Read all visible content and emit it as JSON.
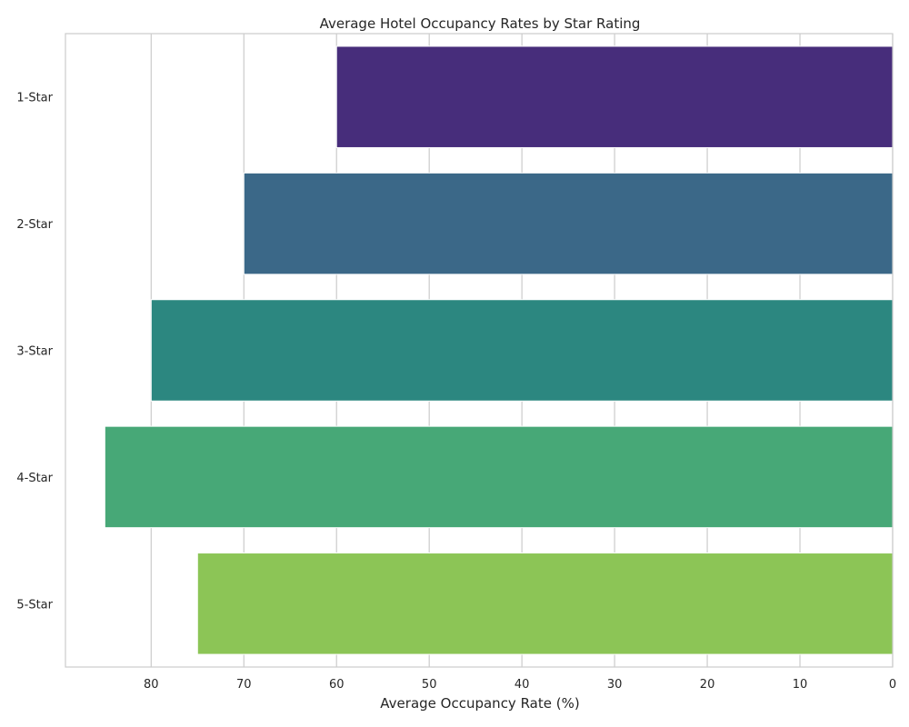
{
  "chart_data": {
    "type": "bar",
    "orientation": "horizontal",
    "title": "Average Hotel Occupancy Rates by Star Rating",
    "xlabel": "Average Occupancy Rate (%)",
    "ylabel": "",
    "categories": [
      "1-Star",
      "2-Star",
      "3-Star",
      "4-Star",
      "5-Star"
    ],
    "values": [
      60,
      70,
      80,
      85,
      75
    ],
    "colors": [
      "#472d7b",
      "#3b6888",
      "#2c8780",
      "#47a877",
      "#8cc556"
    ],
    "xlim": [
      89.25,
      0
    ],
    "x_axis_inverted": true,
    "xticks": [
      80,
      70,
      60,
      50,
      40,
      30,
      20,
      10,
      0
    ],
    "grid": "vertical",
    "legend": "none"
  }
}
